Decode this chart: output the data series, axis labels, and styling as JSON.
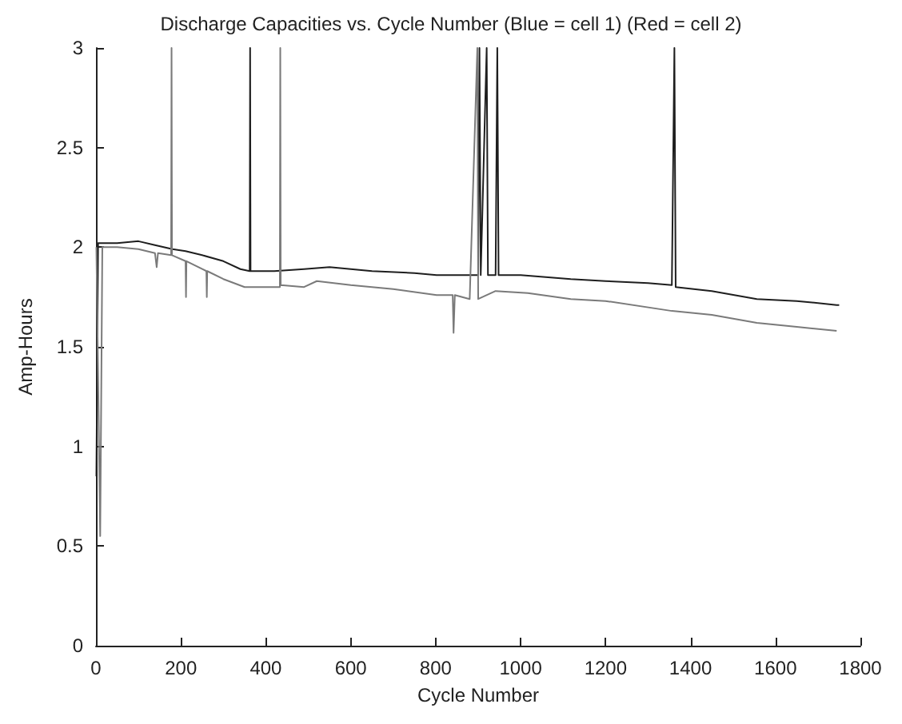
{
  "chart_data": {
    "type": "line",
    "title": "Discharge Capacities vs. Cycle Number (Blue = cell 1) (Red = cell 2)",
    "xlabel": "Cycle Number",
    "ylabel": "Amp-Hours",
    "xlim": [
      0,
      1800
    ],
    "xticks": [
      0,
      200,
      400,
      600,
      800,
      1000,
      1200,
      1400,
      1600,
      1800
    ],
    "ylim": [
      0,
      3
    ],
    "yticks": [
      0,
      0.5,
      1,
      1.5,
      2,
      2.5,
      3
    ],
    "grid": false,
    "marker": "none",
    "line_style": "solid",
    "series": [
      {
        "color": "#1e1e1e",
        "x": [
          1,
          5,
          50,
          100,
          139,
          180,
          211,
          250,
          300,
          340,
          362,
          363,
          364,
          420,
          490,
          550,
          650,
          750,
          802,
          870,
          900,
          903,
          906,
          920,
          923,
          941,
          945,
          948,
          1000,
          1118,
          1200,
          1300,
          1356,
          1362,
          1365,
          1450,
          1556,
          1650,
          1744,
          1750
        ],
        "values": [
          0.85,
          2.02,
          2.02,
          2.03,
          2.01,
          1.99,
          1.98,
          1.96,
          1.93,
          1.89,
          1.88,
          3,
          1.88,
          1.88,
          1.89,
          1.9,
          1.88,
          1.87,
          1.86,
          1.86,
          1.86,
          3,
          1.86,
          3,
          1.86,
          1.86,
          3,
          1.86,
          1.86,
          1.84,
          1.83,
          1.82,
          1.81,
          3,
          1.8,
          1.78,
          1.74,
          1.73,
          1.71,
          1.71
        ]
      },
      {
        "color": "#7a7a7a",
        "x": [
          1,
          10,
          15,
          50,
          100,
          139,
          143,
          146,
          177,
          178,
          179,
          211,
          212,
          213,
          260,
          261,
          262,
          300,
          350,
          433,
          434,
          435,
          490,
          520,
          600,
          700,
          802,
          840,
          842,
          845,
          880,
          898,
          900,
          941,
          1017,
          1118,
          1200,
          1356,
          1450,
          1556,
          1650,
          1744
        ],
        "values": [
          2.0,
          0.55,
          2.0,
          2.0,
          1.99,
          1.97,
          1.9,
          1.97,
          1.96,
          3,
          1.96,
          1.93,
          1.75,
          1.93,
          1.88,
          1.75,
          1.88,
          1.84,
          1.8,
          1.8,
          3,
          1.81,
          1.8,
          1.83,
          1.81,
          1.79,
          1.76,
          1.76,
          1.57,
          1.76,
          1.74,
          3,
          1.74,
          1.78,
          1.77,
          1.74,
          1.73,
          1.68,
          1.66,
          1.62,
          1.6,
          1.58
        ]
      }
    ]
  }
}
